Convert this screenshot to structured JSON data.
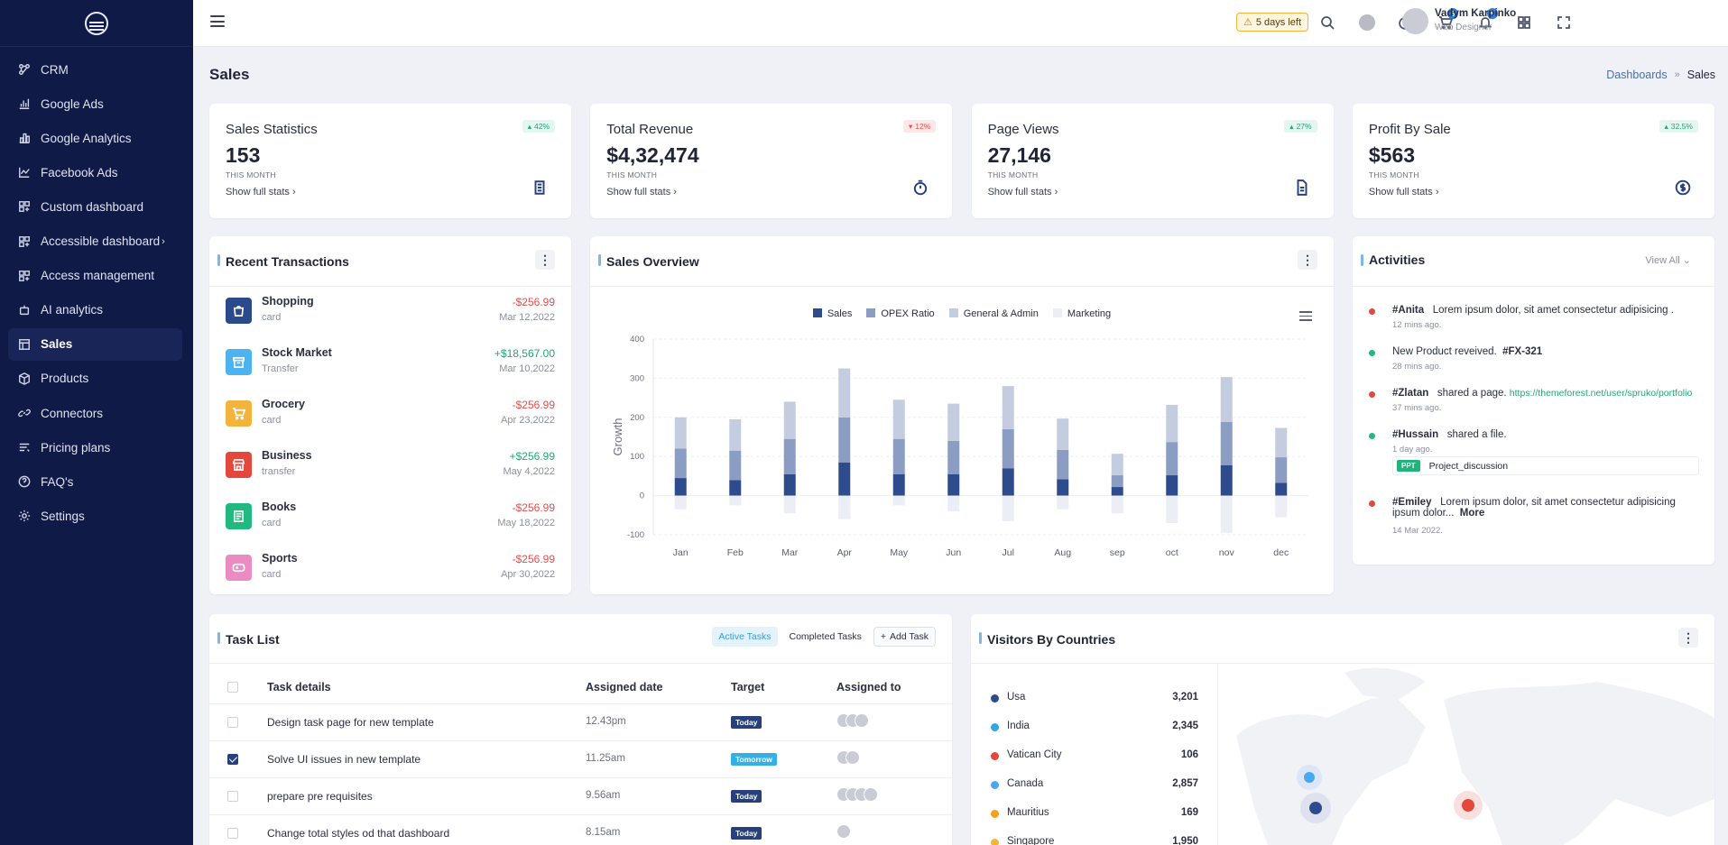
{
  "sidebar": {
    "items": [
      {
        "label": "CRM",
        "icon": "crm-icon"
      },
      {
        "label": "Google Ads",
        "icon": "bar-chart-icon"
      },
      {
        "label": "Google Analytics",
        "icon": "analytics-icon"
      },
      {
        "label": "Facebook Ads",
        "icon": "line-chart-icon"
      },
      {
        "label": "Custom dashboard",
        "icon": "grid-icon"
      },
      {
        "label": "Accessible dashboard",
        "icon": "grid-icon"
      },
      {
        "label": "Access management",
        "icon": "grid-icon"
      },
      {
        "label": "AI analytics",
        "icon": "robot-icon"
      },
      {
        "label": "Sales",
        "icon": "table-icon",
        "active": true
      },
      {
        "label": "Products",
        "icon": "box-icon"
      },
      {
        "label": "Connectors",
        "icon": "link-icon"
      },
      {
        "label": "Pricing plans",
        "icon": "list-icon"
      },
      {
        "label": "FAQ's",
        "icon": "question-icon"
      },
      {
        "label": "Settings",
        "icon": "gear-icon"
      }
    ]
  },
  "header": {
    "trial": "5 days left",
    "cart_count": "5",
    "notif_count": "5",
    "user_name": "Vadym Karpinko",
    "user_role": "Web Designer"
  },
  "page": {
    "title": "Sales",
    "breadcrumb_root": "Dashboards",
    "breadcrumb_current": "Sales"
  },
  "stats": [
    {
      "title": "Sales Statistics",
      "value": "153",
      "sub": "THIS MONTH",
      "link": "Show full stats",
      "badge": "42%",
      "trend": "up"
    },
    {
      "title": "Total Revenue",
      "value": "$4,32,474",
      "sub": "THIS MONTH",
      "link": "Show full stats",
      "badge": "12%",
      "trend": "down"
    },
    {
      "title": "Page Views",
      "value": "27,146",
      "sub": "THIS MONTH",
      "link": "Show full stats",
      "badge": "27%",
      "trend": "up"
    },
    {
      "title": "Profit By Sale",
      "value": "$563",
      "sub": "THIS MONTH",
      "link": "Show full stats",
      "badge": "32.5%",
      "trend": "up"
    }
  ],
  "transactions": {
    "title": "Recent Transactions",
    "items": [
      {
        "name": "Shopping",
        "type": "card",
        "amount": "-$256.99",
        "date": "Mar 12,2022",
        "color": "#2b4a8b"
      },
      {
        "name": "Stock Market",
        "type": "Transfer",
        "amount": "+$18,567.00",
        "date": "Mar 10,2022",
        "color": "#4ab3f0"
      },
      {
        "name": "Grocery",
        "type": "card",
        "amount": "-$256.99",
        "date": "Apr 23,2022",
        "color": "#f4b33d"
      },
      {
        "name": "Business",
        "type": "transfer",
        "amount": "+$256.99",
        "date": "May 4,2022",
        "color": "#e4473b"
      },
      {
        "name": "Books",
        "type": "card",
        "amount": "-$256.99",
        "date": "May 18,2022",
        "color": "#22b980"
      },
      {
        "name": "Sports",
        "type": "card",
        "amount": "-$256.99",
        "date": "Apr 30,2022",
        "color": "#ea8cc1"
      }
    ]
  },
  "overview": {
    "title": "Sales Overview"
  },
  "chart_data": {
    "type": "bar",
    "stacked": true,
    "ylabel": "Growth",
    "ylim": [
      -100,
      400
    ],
    "yticks": [
      -100,
      0,
      100,
      200,
      300,
      400
    ],
    "categories": [
      "Jan",
      "Feb",
      "Mar",
      "Apr",
      "May",
      "Jun",
      "Jul",
      "Aug",
      "sep",
      "oct",
      "nov",
      "dec"
    ],
    "series": [
      {
        "name": "Sales",
        "color": "#2e4b8c",
        "values": [
          45,
          40,
          55,
          85,
          55,
          55,
          70,
          42,
          22,
          52,
          78,
          33
        ]
      },
      {
        "name": "OPEX Ratio",
        "color": "#8c9dc3",
        "values": [
          75,
          75,
          90,
          115,
          90,
          85,
          100,
          75,
          30,
          85,
          110,
          65
        ]
      },
      {
        "name": "General & Admin",
        "color": "#c4cce0",
        "values": [
          80,
          80,
          95,
          125,
          100,
          95,
          110,
          80,
          55,
          95,
          115,
          75
        ]
      },
      {
        "name": "Marketing",
        "color": "#eceef6",
        "values": [
          -35,
          -25,
          -45,
          -60,
          -25,
          -40,
          -65,
          -35,
          -45,
          -70,
          -95,
          -55
        ]
      }
    ],
    "grid": true,
    "legend": "top"
  },
  "activities": {
    "title": "Activities",
    "view_all": "View All",
    "items": [
      {
        "user": "#Anita",
        "text": "Lorem ipsum dolor, sit amet consectetur adipisicing .",
        "time": "12 mins ago.",
        "color": "#e4473b"
      },
      {
        "user": "",
        "pre": "New Product reveived.",
        "code": "#FX-321",
        "time": "28 mins ago.",
        "color": "#22b980"
      },
      {
        "user": "#Zlatan",
        "text": "shared a page.",
        "link": "https://themeforest.net/user/spruko/portfolio",
        "time": "37 mins ago.",
        "color": "#e4473b"
      },
      {
        "user": "#Hussain",
        "text": "shared a file.",
        "time": "1 day ago.",
        "file_tag": "PPT",
        "file_name": "Project_discussion",
        "color": "#22b980"
      },
      {
        "user": "#Emiley",
        "text": "Lorem ipsum dolor, sit amet consectetur adipisicing",
        "text2": "ipsum dolor...",
        "more": "More",
        "time": "14 Mar 2022.",
        "color": "#e4473b"
      }
    ]
  },
  "tasks": {
    "title": "Task List",
    "tab_active": "Active Tasks",
    "tab_completed": "Completed Tasks",
    "add_task": "Add Task",
    "columns": [
      "Task details",
      "Assigned date",
      "Target",
      "Assigned to"
    ],
    "rows": [
      {
        "name": "Design task page for new template",
        "date": "12.43pm",
        "target": "Today",
        "target_color": "#27407b",
        "avatars": 3,
        "checked": false
      },
      {
        "name": "Solve UI issues in new template",
        "date": "11.25am",
        "target": "Tomorrow",
        "target_color": "#35b0e6",
        "avatars": 2,
        "checked": true
      },
      {
        "name": "prepare pre requisites",
        "date": "9.56am",
        "target": "Today",
        "target_color": "#27407b",
        "avatars": 4,
        "checked": false
      },
      {
        "name": "Change total styles od that dashboard",
        "date": "8.15am",
        "target": "Today",
        "target_color": "#27407b",
        "avatars": 1,
        "checked": false
      }
    ]
  },
  "visitors": {
    "title": "Visitors By Countries",
    "countries": [
      {
        "name": "Usa",
        "value": "3,201",
        "color": "#2e4b8c"
      },
      {
        "name": "India",
        "value": "2,345",
        "color": "#2fa8e0"
      },
      {
        "name": "Vatican City",
        "value": "106",
        "color": "#e4473b"
      },
      {
        "name": "Canada",
        "value": "2,857",
        "color": "#4aa8f0"
      },
      {
        "name": "Mauritius",
        "value": "169",
        "color": "#f4a21d"
      },
      {
        "name": "Singapore",
        "value": "1,950",
        "color": "#f4b33d"
      }
    ]
  }
}
